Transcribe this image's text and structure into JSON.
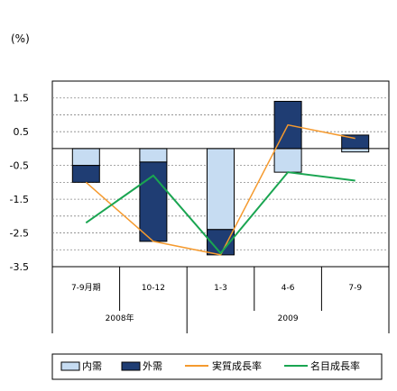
{
  "chart_data": {
    "type": "bar+line",
    "unit_label": "(%)",
    "categories": [
      "7-9月期",
      "10-12",
      "1-3",
      "4-6",
      "7-9"
    ],
    "year_groups": [
      {
        "label": "2008年",
        "span": [
          0,
          1
        ]
      },
      {
        "label": "2009",
        "span": [
          2,
          4
        ]
      }
    ],
    "ylim": [
      -3.5,
      2.0
    ],
    "yticks": [
      1.5,
      0.5,
      -0.5,
      -1.5,
      -2.5,
      -3.5
    ],
    "grid": "dashed",
    "bar_series": [
      {
        "name": "内需",
        "color": "#c6dcf2",
        "values": [
          -0.5,
          -0.4,
          -2.4,
          -0.7,
          -0.1
        ]
      },
      {
        "name": "外需",
        "color": "#1f3d73",
        "values": [
          -0.5,
          -2.35,
          -0.75,
          1.4,
          0.4
        ]
      }
    ],
    "line_series": [
      {
        "name": "実質成長率",
        "color": "#f59a2e",
        "values": [
          -1.0,
          -2.75,
          -3.15,
          0.7,
          0.3
        ]
      },
      {
        "name": "名目成長率",
        "color": "#1aa551",
        "values": [
          -2.2,
          -0.8,
          -3.1,
          -0.7,
          -0.95
        ]
      }
    ],
    "legend_position": "bottom"
  }
}
